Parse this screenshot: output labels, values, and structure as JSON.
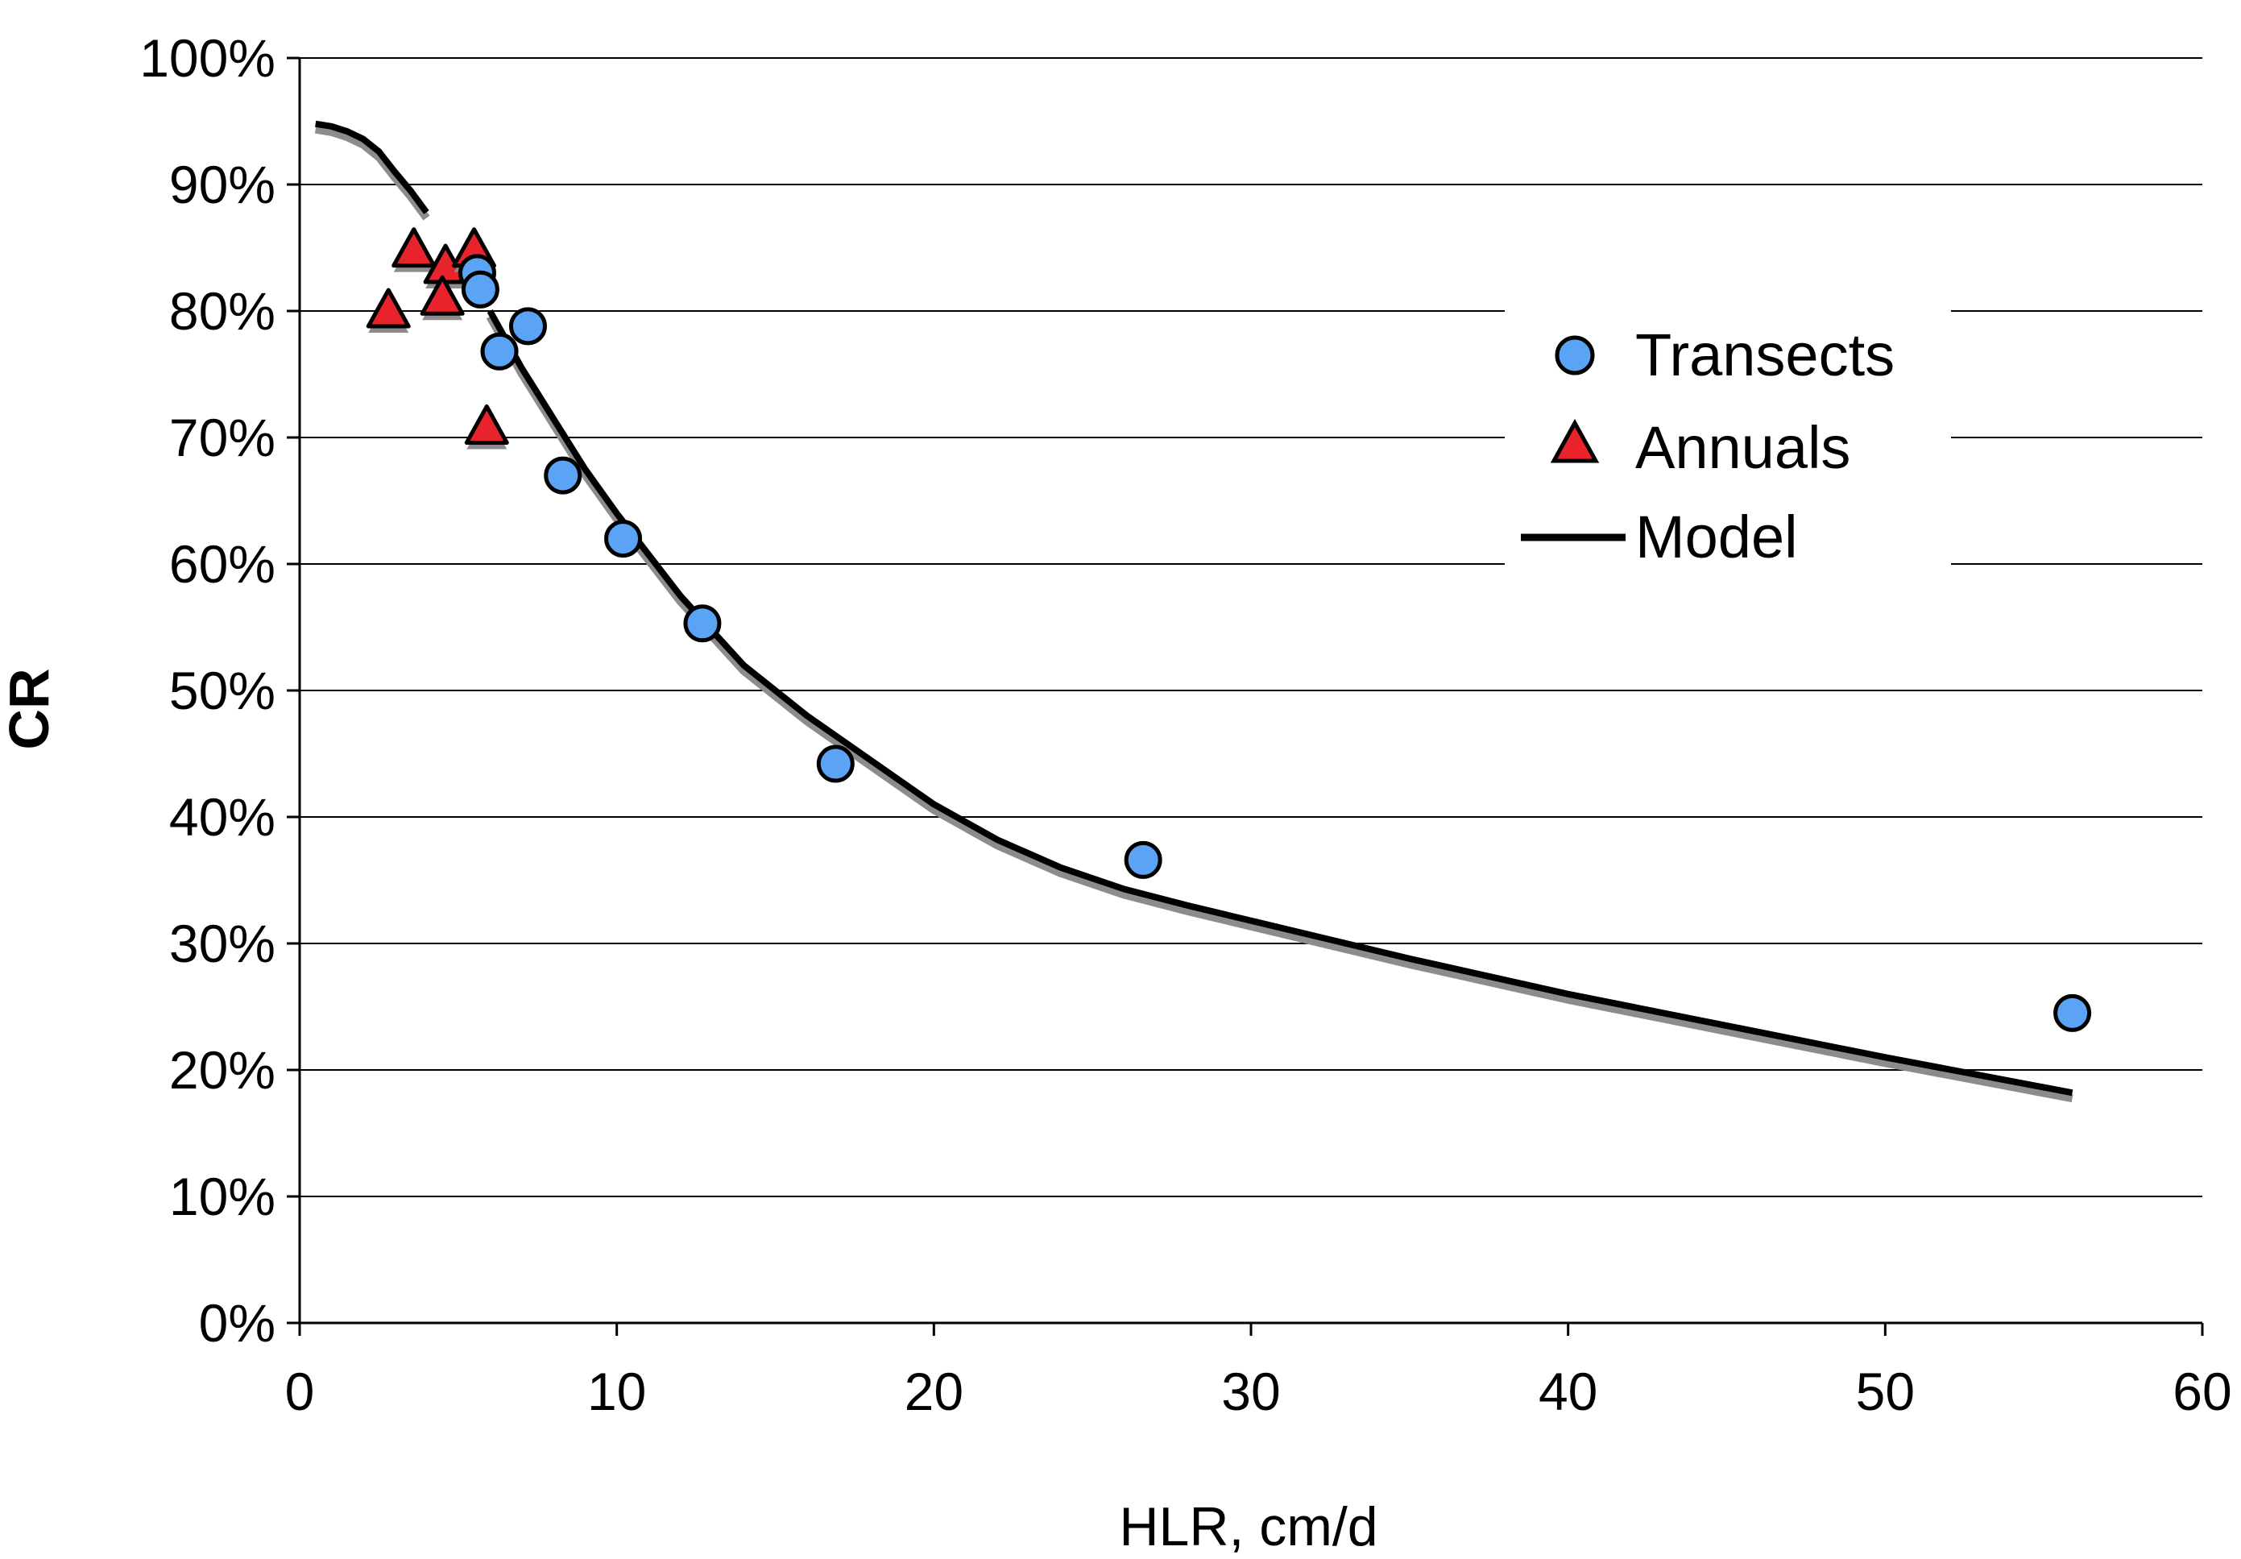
{
  "chart_data": {
    "type": "scatter",
    "title": "",
    "xlabel": "HLR, cm/d",
    "ylabel": "CR",
    "xlim": [
      0,
      60
    ],
    "ylim": [
      0,
      100
    ],
    "x_ticks": [
      0,
      10,
      20,
      30,
      40,
      50,
      60
    ],
    "y_ticks": [
      0,
      10,
      20,
      30,
      40,
      50,
      60,
      70,
      80,
      90,
      100
    ],
    "y_tick_suffix": "%",
    "grid": "horizontal",
    "legend_position": "center-right",
    "series": [
      {
        "name": "Transects",
        "kind": "scatter",
        "marker": "circle",
        "color": "#5BA3F5",
        "x": [
          5.6,
          5.7,
          6.3,
          7.2,
          8.3,
          10.2,
          12.7,
          16.9,
          26.6,
          55.9
        ],
        "y": [
          83.0,
          81.7,
          76.8,
          78.8,
          67.0,
          62.0,
          55.3,
          44.2,
          36.6,
          24.5
        ]
      },
      {
        "name": "Annuals",
        "kind": "scatter",
        "marker": "triangle",
        "color": "#E8232B",
        "x": [
          2.8,
          3.6,
          4.6,
          4.5,
          5.5,
          5.9
        ],
        "y": [
          80.0,
          84.8,
          83.5,
          81.0,
          84.8,
          70.8
        ]
      },
      {
        "name": "Model",
        "kind": "line",
        "color": "#000000",
        "segments": [
          {
            "x": [
              0.5,
              1.0,
              1.5,
              2.0,
              2.5,
              3.0,
              3.5,
              4.0
            ],
            "y": [
              94.8,
              94.6,
              94.2,
              93.6,
              92.6,
              91.0,
              89.5,
              87.8
            ]
          },
          {
            "x": [
              6.0,
              7.0,
              8.0,
              9.0,
              10.0,
              12.0,
              14.0,
              16.0,
              18.0,
              20.0,
              22.0,
              24.0,
              26.0,
              28.0,
              30.0,
              35.0,
              40.0,
              45.0,
              50.0,
              55.9
            ],
            "y": [
              80.0,
              75.5,
              71.5,
              67.5,
              64.0,
              57.5,
              52.0,
              48.0,
              44.5,
              41.0,
              38.2,
              36.0,
              34.3,
              33.0,
              31.8,
              28.8,
              26.0,
              23.5,
              21.0,
              18.2
            ]
          }
        ]
      }
    ]
  }
}
